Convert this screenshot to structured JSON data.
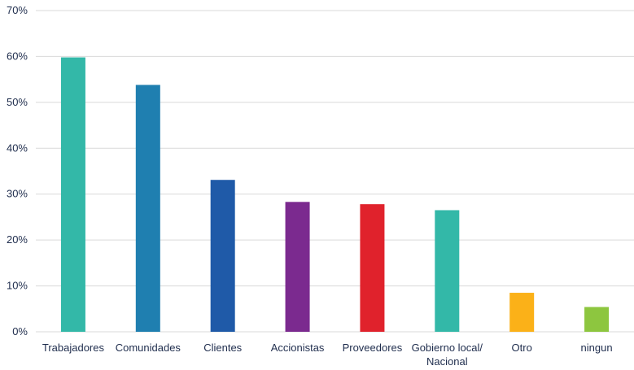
{
  "chart_data": {
    "type": "bar",
    "title": "",
    "xlabel": "",
    "ylabel": "",
    "ylim": [
      0,
      70
    ],
    "yticks": [
      "0%",
      "10%",
      "20%",
      "30%",
      "40%",
      "50%",
      "60%",
      "70%"
    ],
    "grid": true,
    "categories": [
      [
        "Trabajadores"
      ],
      [
        "Comunidades"
      ],
      [
        "Clientes"
      ],
      [
        "Accionistas"
      ],
      [
        "Proveedores"
      ],
      [
        "Gobierno local/",
        "Nacional"
      ],
      [
        "Otro"
      ],
      [
        "ningun"
      ]
    ],
    "values": [
      59.8,
      53.8,
      33.1,
      28.3,
      27.8,
      26.5,
      8.5,
      5.4
    ],
    "colors": [
      "#33b8a8",
      "#1f7fb0",
      "#1f5aa8",
      "#7b2a8f",
      "#e0222c",
      "#33b8a8",
      "#fbb118",
      "#8dc63f"
    ]
  }
}
